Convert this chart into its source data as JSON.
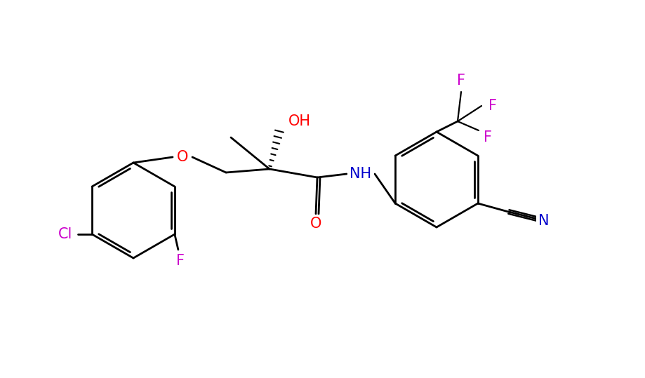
{
  "bg_color": "#ffffff",
  "bond_color": "#000000",
  "atom_colors": {
    "O": "#ff0000",
    "N": "#0000cc",
    "F": "#cc00cc",
    "Cl": "#cc00cc",
    "CN": "#000000"
  },
  "figsize": [
    9.19,
    5.39
  ],
  "dpi": 100,
  "lw": 2.0,
  "fontsize": 15
}
